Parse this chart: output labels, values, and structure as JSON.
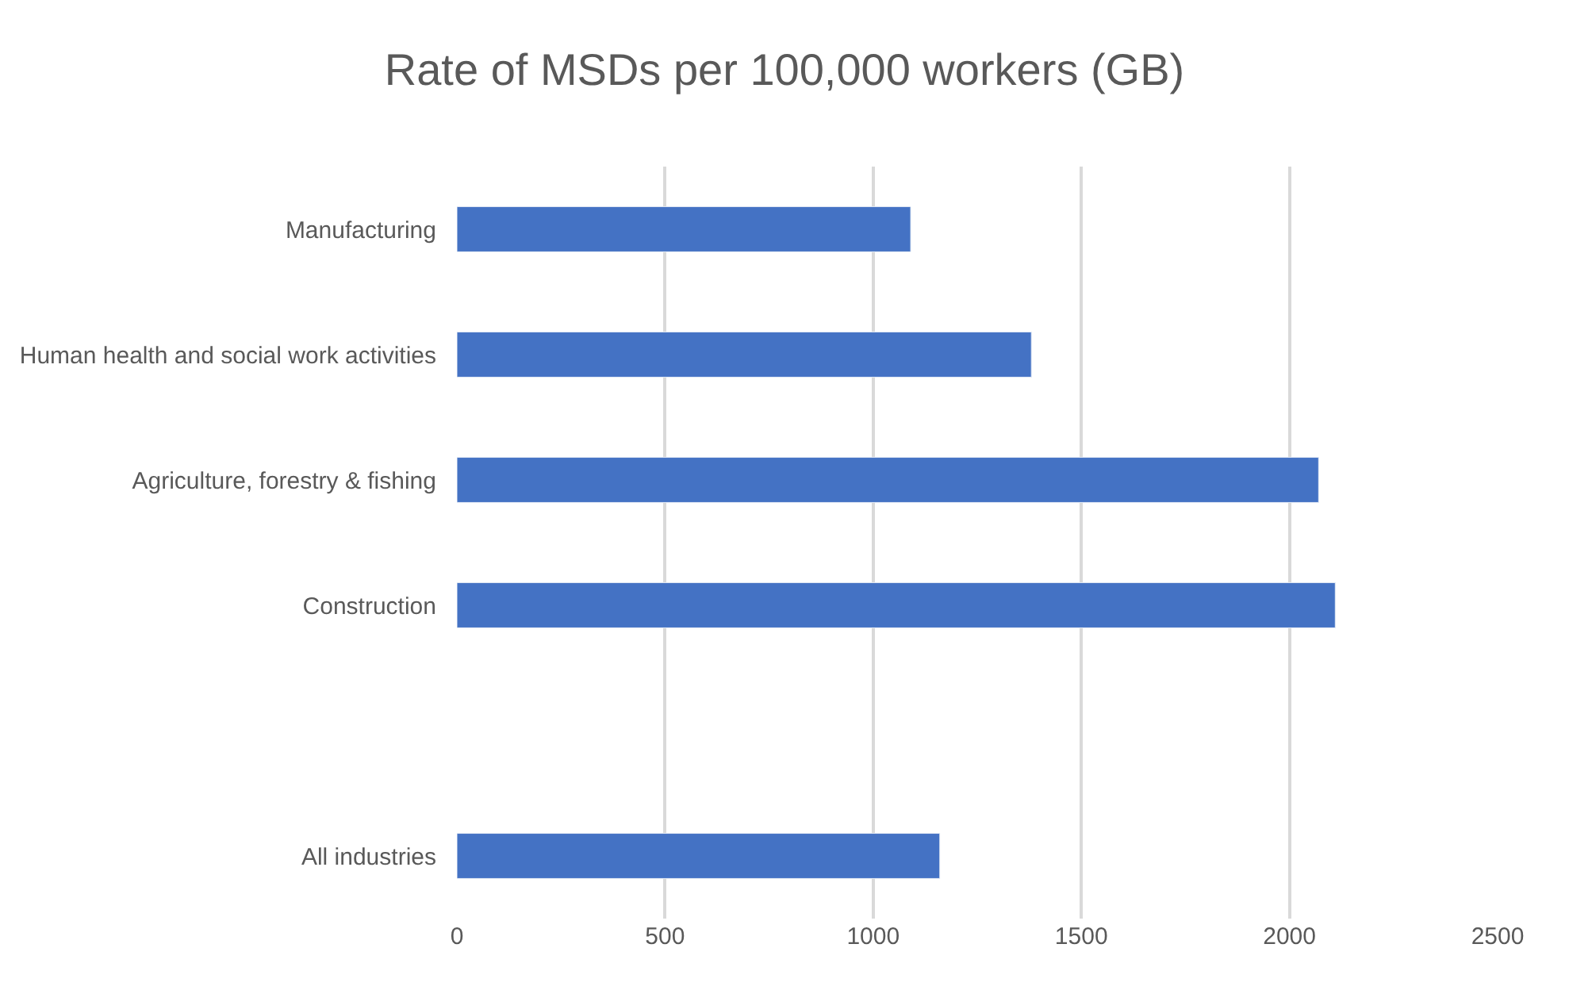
{
  "chart_data": {
    "type": "bar",
    "orientation": "horizontal",
    "title": "Rate of MSDs per 100,000 workers (GB)",
    "categories": [
      "Manufacturing",
      "Human health and social work activities",
      "Agriculture, forestry & fishing",
      "Construction",
      null,
      "All industries"
    ],
    "values": [
      1090,
      1380,
      2070,
      2110,
      null,
      1160
    ],
    "color": "#4472c4",
    "xlim": [
      0,
      2500
    ],
    "xticks": [
      0,
      500,
      1000,
      1500,
      2000,
      2500
    ],
    "grid": "x"
  }
}
